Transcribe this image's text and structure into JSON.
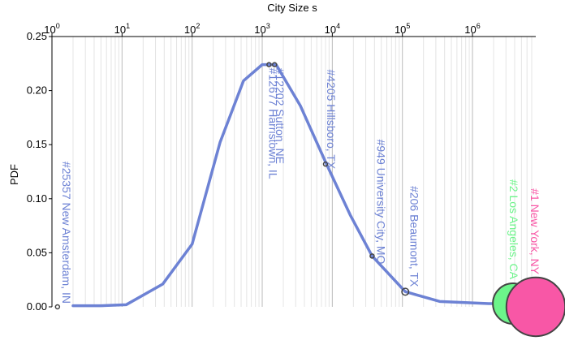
{
  "chart_data": {
    "type": "line",
    "x_label": "City Size s",
    "y_label": "PDF",
    "xscale": "log",
    "xlim": [
      1,
      8000000
    ],
    "ylim": [
      0,
      0.25
    ],
    "xticks": [
      {
        "value": 1,
        "label": "10",
        "sup": "0"
      },
      {
        "value": 10,
        "label": "10",
        "sup": "1"
      },
      {
        "value": 100,
        "label": "10",
        "sup": "2"
      },
      {
        "value": 1000,
        "label": "10",
        "sup": "3"
      },
      {
        "value": 10000,
        "label": "10",
        "sup": "4"
      },
      {
        "value": 100000,
        "label": "10",
        "sup": "5"
      },
      {
        "value": 1000000,
        "label": "10",
        "sup": "6"
      }
    ],
    "yticks": [
      {
        "value": 0,
        "label": "0.00"
      },
      {
        "value": 0.05,
        "label": "0.05"
      },
      {
        "value": 0.1,
        "label": "0.10"
      },
      {
        "value": 0.15,
        "label": "0.15"
      },
      {
        "value": 0.2,
        "label": "0.20"
      },
      {
        "value": 0.25,
        "label": "0.25"
      }
    ],
    "grid": true,
    "series": [
      {
        "color": "#6d82d4",
        "x": [
          2,
          5,
          11.5,
          38,
          100,
          250,
          540,
          1000,
          1580,
          3500,
          8000,
          18000,
          37000,
          110000,
          340000,
          1700000,
          3800000
        ],
        "values": [
          0.001,
          0.001,
          0.002,
          0.021,
          0.058,
          0.152,
          0.209,
          0.224,
          0.224,
          0.186,
          0.134,
          0.085,
          0.047,
          0.014,
          0.005,
          0.003,
          0.003
        ]
      }
    ],
    "annotations": [
      {
        "label": "#25357 New Amsterdam, IN",
        "x": 1.2,
        "y": 0,
        "color": "#6d82d4"
      },
      {
        "label": "#12677 Harristown, IL",
        "x": 1250,
        "y": 0.224,
        "color": "#6d82d4"
      },
      {
        "label": "#12202 Sutton, NE",
        "x": 1500,
        "y": 0.224,
        "color": "#6d82d4"
      },
      {
        "label": "#4205 Hillsboro, TX",
        "x": 8000,
        "y": 0.132,
        "color": "#6d82d4"
      },
      {
        "label": "#949 University City, MO",
        "x": 37000,
        "y": 0.047,
        "color": "#6d82d4"
      },
      {
        "label": "#206 Beaumont, TX",
        "x": 110000,
        "y": 0.014,
        "color": "#6d82d4"
      },
      {
        "label": "#2 Los Angeles, CA",
        "x": 3800000,
        "y": 0.003,
        "color": "#6cf48a"
      },
      {
        "label": "#1 New York, NY",
        "x": 8000000,
        "y": 0,
        "color": "#f857a6"
      }
    ]
  }
}
